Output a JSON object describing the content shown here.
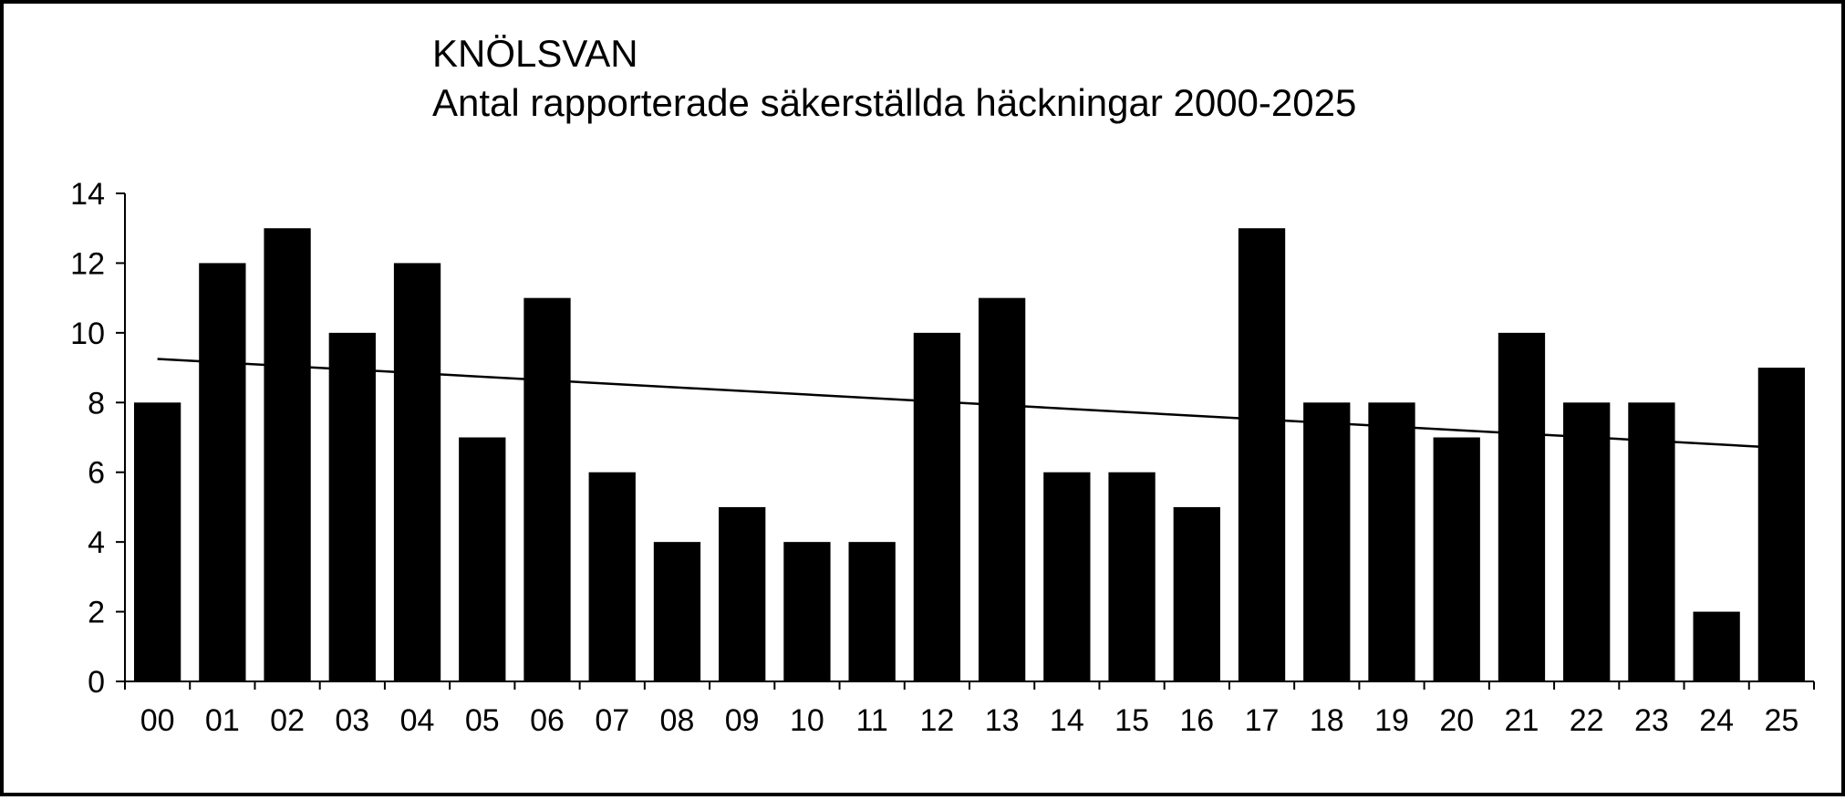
{
  "chart_data": {
    "type": "bar",
    "title": "KNÖLSVAN",
    "subtitle": "Antal rapporterade säkerställda häckningar 2000-2025",
    "categories": [
      "00",
      "01",
      "02",
      "03",
      "04",
      "05",
      "06",
      "07",
      "08",
      "09",
      "10",
      "11",
      "12",
      "13",
      "14",
      "15",
      "16",
      "17",
      "18",
      "19",
      "20",
      "21",
      "22",
      "23",
      "24",
      "25"
    ],
    "values": [
      8,
      12,
      13,
      10,
      12,
      7,
      11,
      6,
      4,
      5,
      4,
      4,
      10,
      11,
      6,
      6,
      5,
      13,
      8,
      8,
      7,
      10,
      8,
      8,
      2,
      9
    ],
    "ylim": [
      0,
      14
    ],
    "yticks": [
      0,
      2,
      4,
      6,
      8,
      10,
      12,
      14
    ],
    "trendline": {
      "type": "linear",
      "start": 9.25,
      "end": 6.7
    },
    "grid": false,
    "legend": "none",
    "bar_color": "#000000",
    "xlabel": "",
    "ylabel": ""
  }
}
